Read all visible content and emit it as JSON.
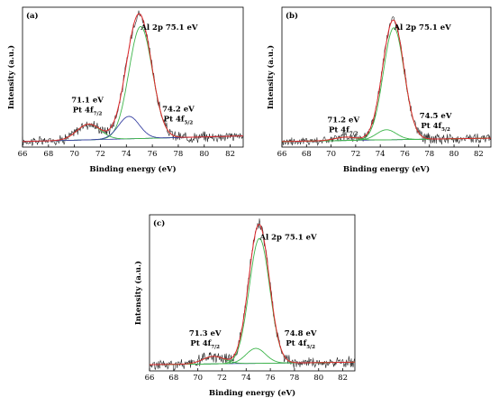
{
  "chart_data": [
    {
      "type": "line",
      "panel_label": "(a)",
      "xlabel": "Binding energy (eV)",
      "ylabel": "Intensity (a.u.)",
      "xlim": [
        66,
        83
      ],
      "x_ticks": [
        66,
        68,
        70,
        72,
        74,
        76,
        78,
        80,
        82
      ],
      "annotations": [
        {
          "title": "Al 2p 75.1 eV",
          "x": 74.9,
          "level": 1.05
        },
        {
          "title": "71.1 eV",
          "line2": "Pt 4f",
          "sub": "7/2",
          "x": 71.0,
          "level": 0.4
        },
        {
          "title": "74.2 eV",
          "line2": "Pt 4f",
          "sub": "5/2",
          "x": 78.0,
          "level": 0.32
        }
      ],
      "series": [
        {
          "role": "raw-data",
          "color": "#222222"
        },
        {
          "role": "envelope-fit",
          "color": "#e0282c"
        },
        {
          "role": "Al 2p component",
          "center": 75.1,
          "amplitude": 1.0,
          "width": 0.9,
          "color": "#3db54a"
        },
        {
          "role": "Pt 4f7/2 component",
          "center": 71.1,
          "amplitude": 0.14,
          "width": 0.9,
          "color": "#3db54a"
        },
        {
          "role": "Pt 4f5/2 component",
          "center": 74.2,
          "amplitude": 0.2,
          "width": 0.8,
          "color": "#3a43a3"
        },
        {
          "role": "background",
          "color": "#3a43a3"
        }
      ]
    },
    {
      "type": "line",
      "panel_label": "(b)",
      "xlabel": "Binding energy (eV)",
      "ylabel": "Intensity (a.u.)",
      "xlim": [
        66,
        83
      ],
      "x_ticks": [
        66,
        68,
        70,
        72,
        74,
        76,
        78,
        80,
        82
      ],
      "annotations": [
        {
          "title": "Al 2p 75.1 eV",
          "x": 74.9,
          "level": 1.05
        },
        {
          "title": "71.2 eV",
          "line2": "Pt 4f",
          "sub": "7/2",
          "x": 71.0,
          "level": 0.22
        },
        {
          "title": "74.5 eV",
          "line2": "Pt 4f",
          "sub": "5/2",
          "x": 78.5,
          "level": 0.26
        }
      ],
      "series": [
        {
          "role": "raw-data",
          "color": "#222222"
        },
        {
          "role": "envelope-fit",
          "color": "#e0282c"
        },
        {
          "role": "Al 2p component",
          "center": 75.1,
          "amplitude": 1.0,
          "width": 0.85,
          "color": "#3db54a"
        },
        {
          "role": "Pt 4f7/2 component",
          "center": 71.2,
          "amplitude": 0.03,
          "width": 0.9,
          "color": "#3db54a"
        },
        {
          "role": "Pt 4f5/2 component",
          "center": 74.5,
          "amplitude": 0.09,
          "width": 0.8,
          "color": "#3db54a"
        },
        {
          "role": "background",
          "color": "#3a43a3"
        }
      ]
    },
    {
      "type": "line",
      "panel_label": "(c)",
      "xlabel": "Binding energy (eV)",
      "ylabel": "Intensity (a.u.)",
      "xlim": [
        66,
        83
      ],
      "x_ticks": [
        66,
        68,
        70,
        72,
        74,
        76,
        78,
        80,
        82
      ],
      "annotations": [
        {
          "title": "Al 2p 75.1 eV",
          "x": 74.9,
          "level": 1.05
        },
        {
          "title": "71.3 eV",
          "line2": "Pt 4f",
          "sub": "7/2",
          "x": 70.6,
          "level": 0.28
        },
        {
          "title": "74.8 eV",
          "line2": "Pt 4f",
          "sub": "5/2",
          "x": 78.5,
          "level": 0.28
        }
      ],
      "series": [
        {
          "role": "raw-data",
          "color": "#222222"
        },
        {
          "role": "envelope-fit",
          "color": "#e0282c"
        },
        {
          "role": "Al 2p component",
          "center": 75.1,
          "amplitude": 1.0,
          "width": 0.85,
          "color": "#3db54a"
        },
        {
          "role": "Pt 4f7/2 component",
          "center": 71.3,
          "amplitude": 0.06,
          "width": 0.9,
          "color": "#3db54a"
        },
        {
          "role": "Pt 4f5/2 component",
          "center": 74.8,
          "amplitude": 0.12,
          "width": 0.8,
          "color": "#3db54a"
        },
        {
          "role": "background",
          "color": "#3a43a3"
        }
      ]
    }
  ]
}
